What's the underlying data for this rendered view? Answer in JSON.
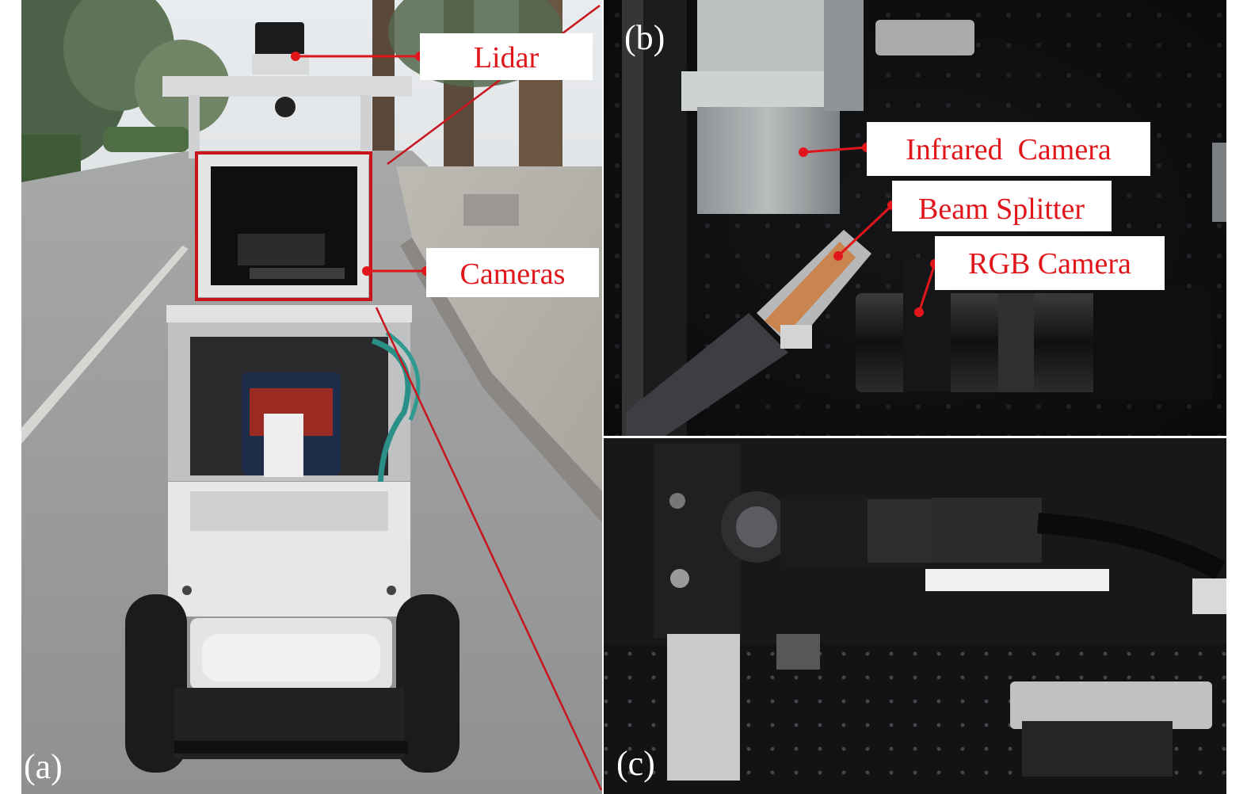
{
  "panels": {
    "a": {
      "tag": "(a)"
    },
    "b": {
      "tag": "(b)"
    },
    "c": {
      "tag": "(c)"
    }
  },
  "callouts": {
    "lidar": "Lidar",
    "cameras": "Cameras",
    "infrared_camera": "Infrared  Camera",
    "beam_splitter": "Beam Splitter",
    "rgb_camera": "RGB Camera"
  },
  "colors": {
    "callout_red": "#e0161b",
    "zoom_line": "#c8151c",
    "label_bg": "#ffffff"
  }
}
